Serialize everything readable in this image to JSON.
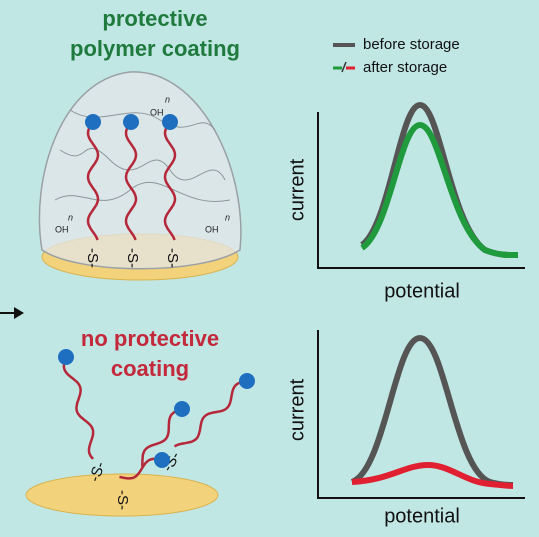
{
  "top_panel": {
    "title_line1": "protective",
    "title_line2": "polymer coating",
    "thiol": "-S-",
    "hydroxyl": "OH",
    "repeat": "n"
  },
  "bottom_panel": {
    "title_line1": "no protective",
    "title_line2": "coating",
    "thiol": "-S-"
  },
  "legend": {
    "before": "before storage",
    "after": "after storage"
  },
  "top_plot": {
    "y_label": "current",
    "x_label": "potential"
  },
  "bottom_plot": {
    "y_label": "current",
    "x_label": "potential"
  }
}
